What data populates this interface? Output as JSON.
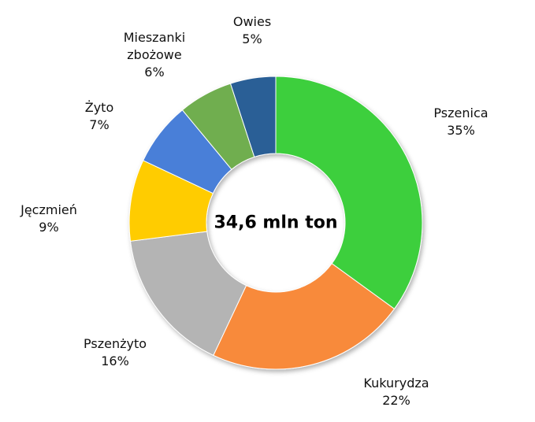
{
  "chart_data": {
    "type": "donut",
    "center_label": "34,6 mln ton",
    "categories": [
      "Pszenica",
      "Kukurydza",
      "Pszenżyto",
      "Jęczmień",
      "Żyto",
      "Mieszanki zbożowe",
      "Owies"
    ],
    "values": [
      35,
      22,
      16,
      9,
      7,
      6,
      5
    ],
    "value_labels": [
      "35%",
      "22%",
      "16%",
      "9%",
      "7%",
      "6%",
      "5%"
    ],
    "colors": [
      "#3ccf3c",
      "#f88a3a",
      "#b4b4b4",
      "#ffcc00",
      "#4a7fd8",
      "#6fae4f",
      "#2c5f96"
    ]
  }
}
